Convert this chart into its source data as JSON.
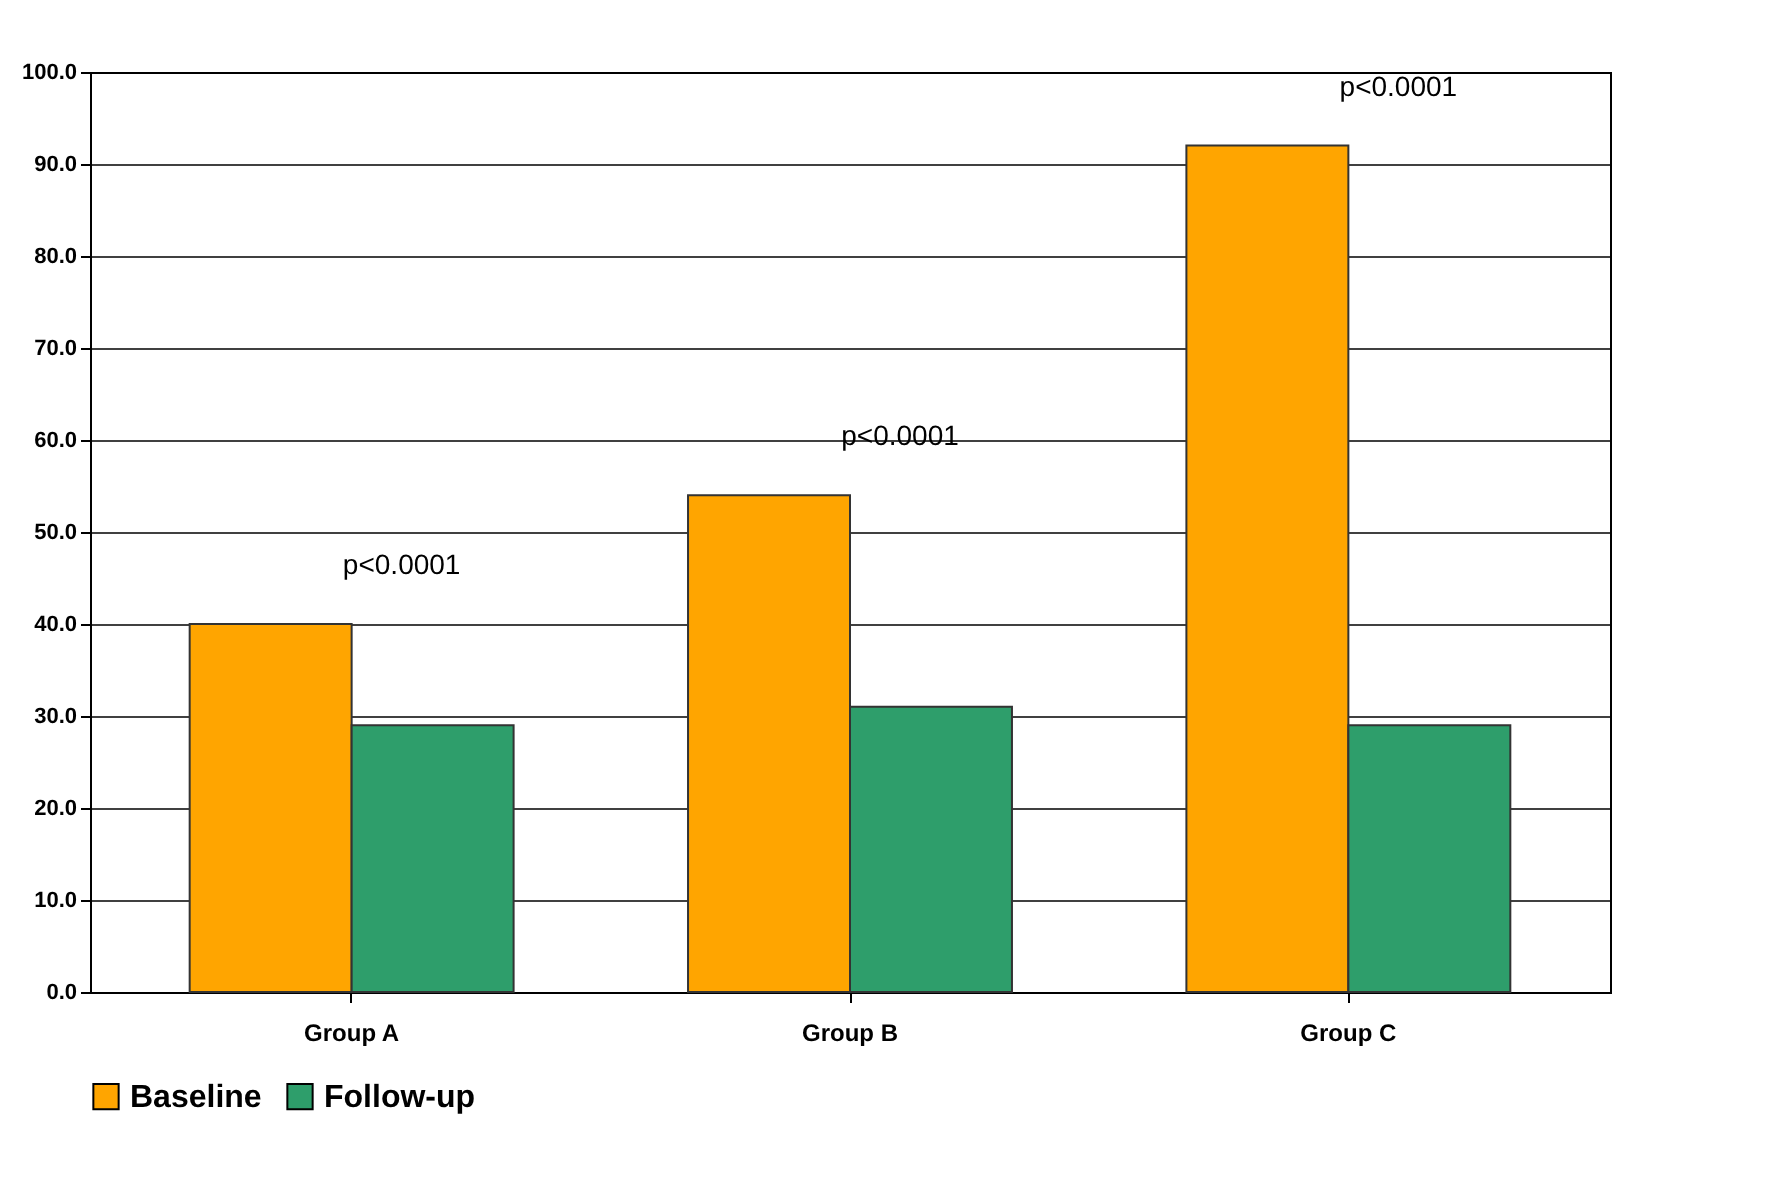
{
  "chart_data": {
    "type": "bar",
    "categories": [
      "Group A",
      "Group B",
      "Group C"
    ],
    "series": [
      {
        "name": "Baseline",
        "color": "#ffa500",
        "values": [
          40,
          54,
          92
        ]
      },
      {
        "name": "Follow-up",
        "color": "#2e9e6b",
        "values": [
          29,
          31,
          29
        ]
      }
    ],
    "ylim": [
      0,
      100
    ],
    "yticks": [
      {
        "value": 0,
        "label": "0.0"
      },
      {
        "value": 10,
        "label": "10.0"
      },
      {
        "value": 20,
        "label": "20.0"
      },
      {
        "value": 30,
        "label": "30.0"
      },
      {
        "value": 40,
        "label": "40.0"
      },
      {
        "value": 50,
        "label": "50.0"
      },
      {
        "value": 60,
        "label": "60.0"
      },
      {
        "value": 70,
        "label": "70.0"
      },
      {
        "value": 80,
        "label": "80.0"
      },
      {
        "value": 90,
        "label": "90.0"
      },
      {
        "value": 100,
        "label": "100.0"
      }
    ],
    "annotations": [
      "p<0.0001",
      "p<0.0001",
      "p<0.0001"
    ],
    "grid": "y",
    "legend": "bottom"
  }
}
